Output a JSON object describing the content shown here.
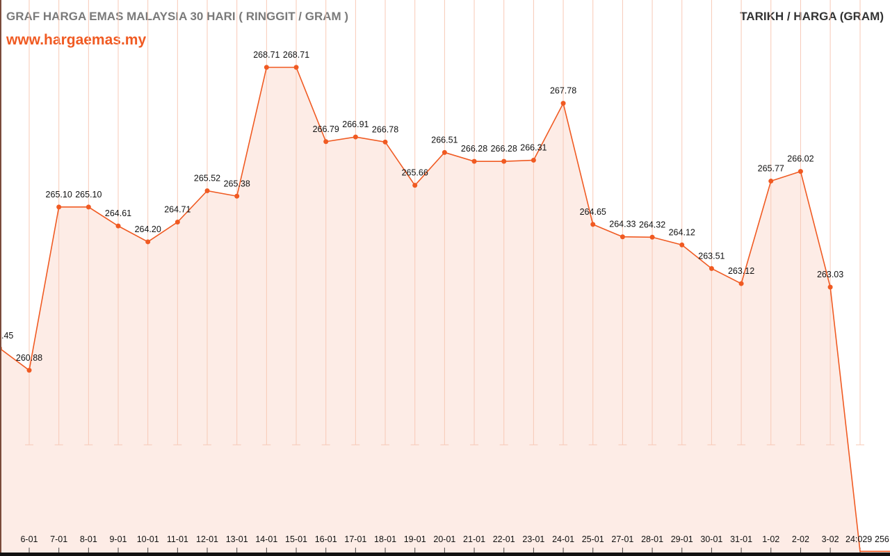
{
  "header": {
    "title": "GRAF HARGA EMAS MALAYSIA 30 HARI ( RINGGIT / GRAM )",
    "website": "www.hargaemas.my",
    "right_title": "TARIKH / HARGA (GRAM)"
  },
  "chart_data": {
    "type": "area",
    "title": "GRAF HARGA EMAS MALAYSIA 30 HARI ( RINGGIT / GRAM )",
    "xlabel": "TARIKH",
    "ylabel": "HARGA (GRAM)",
    "ylim": [
      256.17,
      270.45
    ],
    "grid": "vertical",
    "colors": {
      "line": "#f05a22",
      "fill": "#fdece6",
      "grid": "#f8c9b6"
    },
    "categories": [
      "",
      "6-01",
      "7-01",
      "8-01",
      "9-01",
      "10-01",
      "11-01",
      "12-01",
      "13-01",
      "14-01",
      "15-01",
      "16-01",
      "17-01",
      "18-01",
      "19-01",
      "20-01",
      "21-01",
      "22-01",
      "23-01",
      "24-01",
      "25-01",
      "27-01",
      "28-01",
      "29-01",
      "30-01",
      "31-01",
      "1-02",
      "2-02",
      "3-02",
      "24:029",
      "256"
    ],
    "values": [
      261.45,
      260.88,
      265.1,
      265.1,
      264.61,
      264.2,
      264.71,
      265.52,
      265.38,
      268.71,
      268.71,
      266.79,
      266.91,
      266.78,
      265.66,
      266.51,
      266.28,
      266.28,
      266.31,
      267.78,
      264.65,
      264.33,
      264.32,
      264.12,
      263.51,
      263.12,
      265.77,
      266.02,
      263.03,
      256.2,
      256.2
    ],
    "labels": [
      ".45",
      "260.88",
      "265.10",
      "265.10",
      "264.61",
      "264.20",
      "264.71",
      "265.52",
      "265.38",
      "268.71",
      "268.71",
      "266.79",
      "266.91",
      "266.78",
      "265.66",
      "266.51",
      "266.28",
      "266.28",
      "266.31",
      "267.78",
      "264.65",
      "264.33",
      "264.32",
      "264.12",
      "263.51",
      "263.12",
      "265.77",
      "266.02",
      "263.03",
      "",
      ""
    ]
  }
}
